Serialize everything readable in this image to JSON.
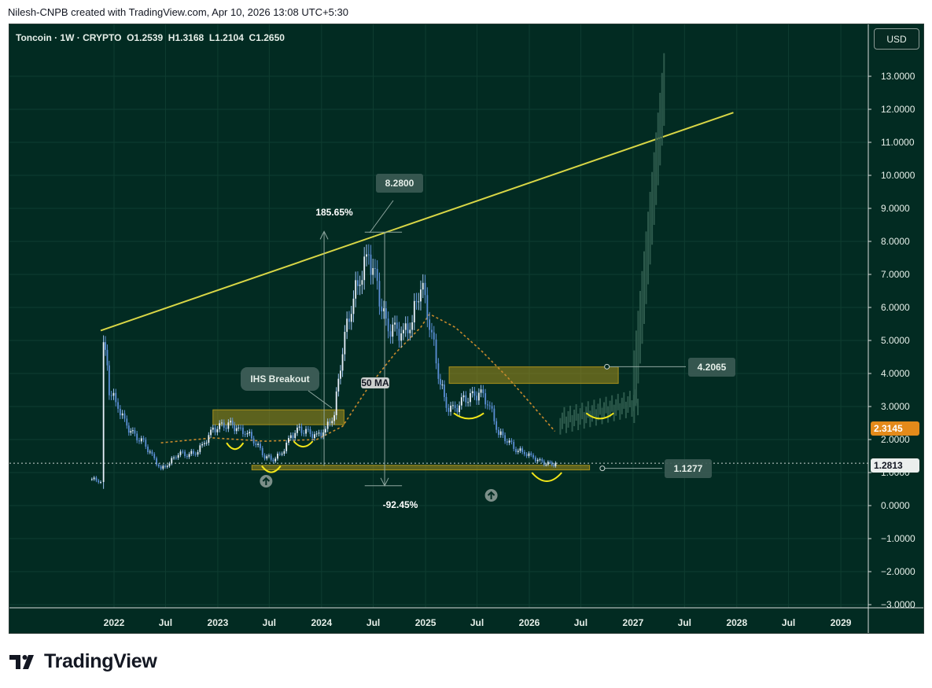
{
  "header": {
    "attribution": "Nilesh-CNPB created with TradingView.com, Apr 10, 2026 13:08 UTC+5:30"
  },
  "symbol_line": "Toncoin · 1W · CRYPTO  O1.2539  H1.3168  L1.2104  C1.2650",
  "currency": "USD",
  "footer": {
    "brand": "TradingView"
  },
  "colors": {
    "background": "#022b22",
    "candle": "#5b8fd6",
    "trendline": "#d8d646",
    "zone": "#a8901c",
    "ma": "#c98a2c",
    "current_price": "#f7931a",
    "arc": "#f2e619"
  },
  "chart_data": {
    "type": "candlestick",
    "ylim": [
      -3,
      14
    ],
    "y_ticks": [
      "13.0000",
      "12.0000",
      "11.0000",
      "10.0000",
      "9.0000",
      "8.0000",
      "7.0000",
      "6.0000",
      "5.0000",
      "4.0000",
      "3.0000",
      "2.0000",
      "1.0000",
      "0.0000",
      "−1.0000",
      "−2.0000",
      "−3.0000"
    ],
    "x_ticks": [
      "2022",
      "Jul",
      "2023",
      "Jul",
      "2024",
      "Jul",
      "2025",
      "Jul",
      "2026",
      "Jul",
      "2027",
      "Jul",
      "2028",
      "Jul",
      "2029"
    ],
    "price_labels": {
      "current": "2.3145",
      "last": "1.2813",
      "resistance": "4.2065",
      "support": "1.1277",
      "peak": "8.2800"
    },
    "annotations": {
      "rise_pct": "185.65%",
      "drop_pct": "-92.45%",
      "ihs_callout": "IHS Breakout",
      "ma_label": "50 MA"
    },
    "series": [
      {
        "name": "Toncoin",
        "x": [
          "2021-10-15",
          "2021-11-15",
          "2021-11-25",
          "2021-12-15",
          "2022-01-15",
          "2022-02-15",
          "2022-03-15",
          "2022-04-15",
          "2022-05-15",
          "2022-06-15",
          "2022-07-15",
          "2022-08-15",
          "2022-09-15",
          "2022-10-15",
          "2022-11-15",
          "2022-12-15",
          "2023-01-15",
          "2023-02-15",
          "2023-03-15",
          "2023-04-15",
          "2023-05-15",
          "2023-06-15",
          "2023-07-15",
          "2023-08-15",
          "2023-09-15",
          "2023-10-15",
          "2023-11-15",
          "2023-12-15",
          "2024-01-15",
          "2024-02-15",
          "2024-03-15",
          "2024-04-15",
          "2024-05-15",
          "2024-06-15",
          "2024-07-15",
          "2024-08-15",
          "2024-09-15",
          "2024-10-15",
          "2024-11-15",
          "2024-12-15",
          "2025-01-15",
          "2025-02-15",
          "2025-03-15",
          "2025-04-15",
          "2025-05-15",
          "2025-06-15",
          "2025-07-15",
          "2025-08-15",
          "2025-09-15",
          "2025-10-15",
          "2025-11-15",
          "2025-12-15",
          "2026-01-15",
          "2026-02-15",
          "2026-03-15",
          "2026-04-10"
        ],
        "close": [
          0.8,
          0.75,
          5.2,
          3.5,
          3.0,
          2.4,
          2.1,
          1.9,
          1.5,
          1.1,
          1.3,
          1.6,
          1.55,
          1.6,
          1.9,
          2.3,
          2.4,
          2.45,
          2.3,
          2.2,
          1.9,
          1.5,
          1.4,
          1.6,
          2.1,
          2.3,
          2.2,
          2.1,
          2.3,
          2.8,
          4.8,
          6.1,
          6.9,
          7.6,
          6.6,
          5.4,
          5.3,
          5.2,
          5.6,
          6.8,
          5.6,
          4.0,
          3.0,
          2.9,
          3.2,
          3.3,
          3.4,
          3.0,
          2.2,
          2.0,
          1.7,
          1.6,
          1.45,
          1.3,
          1.25,
          1.265
        ]
      },
      {
        "name": "50 MA",
        "x": [
          "2022-06-15",
          "2022-12-15",
          "2023-06-15",
          "2023-12-15",
          "2024-03-15",
          "2024-06-15",
          "2024-09-15",
          "2024-12-15",
          "2025-01-15",
          "2025-04-15",
          "2025-07-15",
          "2025-10-15",
          "2026-01-15",
          "2026-04-01"
        ],
        "values": [
          1.9,
          2.05,
          1.95,
          2.0,
          2.4,
          3.6,
          4.6,
          5.4,
          5.8,
          5.4,
          4.7,
          3.9,
          3.0,
          2.25
        ]
      }
    ]
  }
}
